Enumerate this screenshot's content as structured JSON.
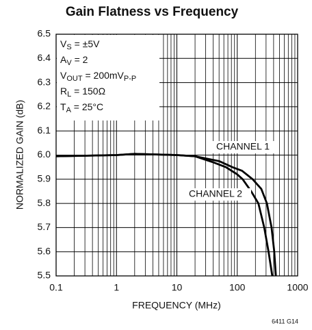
{
  "chart_data": {
    "type": "line",
    "title": "Gain Flatness vs Frequency",
    "x_label": "FREQUENCY (MHz)",
    "y_label": "NORMALIZED GAIN (dB)",
    "footnote": "6411 G14",
    "log_x": true,
    "grid": true,
    "xlim": [
      0.1,
      1000
    ],
    "xticks": [
      0.1,
      1,
      10,
      100,
      1000
    ],
    "ylim": [
      5.5,
      6.5
    ],
    "yticks": [
      5.5,
      5.6,
      5.7,
      5.8,
      5.9,
      {
        "value": 6.0,
        "label": "6.0"
      },
      6.1,
      6.2,
      6.3,
      6.4,
      6.5
    ],
    "annotations": [
      [
        "V",
        {
          "sub": "S"
        },
        " = ±5V"
      ],
      [
        "A",
        {
          "sub": "V"
        },
        " = 2"
      ],
      [
        "V",
        {
          "sub": "OUT"
        },
        " = 200mV",
        {
          "sub": "P-P"
        }
      ],
      [
        "R",
        {
          "sub": "L"
        },
        " = 150Ω"
      ],
      [
        "T",
        {
          "sub": "A"
        },
        " = 25°C"
      ]
    ],
    "series": [
      {
        "name": "CHANNEL 1",
        "color": "#000000",
        "x": [
          0.1,
          1,
          2,
          10,
          20,
          50,
          83,
          120,
          180,
          250,
          310,
          370,
          410,
          436
        ],
        "values": [
          5.995,
          6.0,
          6.005,
          6.0,
          5.995,
          5.975,
          5.95,
          5.935,
          5.9,
          5.86,
          5.8,
          5.7,
          5.6,
          5.5
        ]
      },
      {
        "name": "CHANNEL 2",
        "color": "#000000",
        "x": [
          0.1,
          1,
          2,
          10,
          20,
          40,
          65,
          100,
          123,
          170,
          224,
          280,
          330,
          380
        ],
        "values": [
          5.995,
          6.0,
          6.005,
          6.0,
          5.995,
          5.97,
          5.95,
          5.92,
          5.9,
          5.85,
          5.8,
          5.7,
          5.6,
          5.5
        ]
      }
    ]
  }
}
